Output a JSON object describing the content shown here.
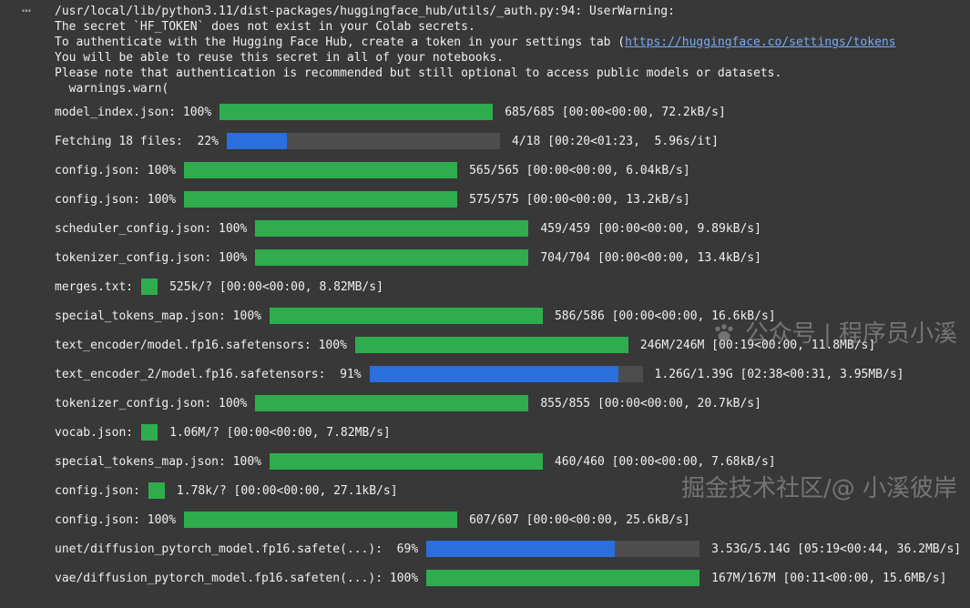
{
  "colors": {
    "background": "#383838",
    "text": "#efefef",
    "green": "#2fad4e",
    "blue": "#2a6fdb",
    "track": "#4d4d4d",
    "link": "#77a9f7",
    "watermark": "rgba(175,175,175,0.5)"
  },
  "icons": {
    "output_menu": "ellipsis-icon",
    "watermark_logo": "paw-icon"
  },
  "output_menu": {
    "label": "⋯"
  },
  "warning": {
    "line1": "/usr/local/lib/python3.11/dist-packages/huggingface_hub/utils/_auth.py:94: UserWarning:",
    "line2": "The secret `HF_TOKEN` does not exist in your Colab secrets.",
    "line3_prefix": "To authenticate with the Hugging Face Hub, create a token in your settings tab (",
    "line3_link": "https://huggingface.co/settings/tokens",
    "line4": "You will be able to reuse this secret in all of your notebooks.",
    "line5": "Please note that authentication is recommended but still optional to access public models or datasets.",
    "line6": "  warnings.warn("
  },
  "progress": {
    "rows": [
      {
        "label": "model_index.json: 100%",
        "bar": {
          "style": "bar",
          "percent": 100,
          "color": "green"
        },
        "stats": "685/685 [00:00<00:00, 72.2kB/s]"
      },
      {
        "label": "Fetching 18 files:  22%",
        "bar": {
          "style": "bar",
          "percent": 22,
          "color": "blue"
        },
        "stats": "4/18 [00:20<01:23,  5.96s/it]"
      },
      {
        "label": "config.json: 100%",
        "bar": {
          "style": "bar",
          "percent": 100,
          "color": "green"
        },
        "stats": "565/565 [00:00<00:00, 6.04kB/s]"
      },
      {
        "label": "config.json: 100%",
        "bar": {
          "style": "bar",
          "percent": 100,
          "color": "green"
        },
        "stats": "575/575 [00:00<00:00, 13.2kB/s]"
      },
      {
        "label": "scheduler_config.json: 100%",
        "bar": {
          "style": "bar",
          "percent": 100,
          "color": "green"
        },
        "stats": "459/459 [00:00<00:00, 9.89kB/s]"
      },
      {
        "label": "tokenizer_config.json: 100%",
        "bar": {
          "style": "bar",
          "percent": 100,
          "color": "green"
        },
        "stats": "704/704 [00:00<00:00, 13.4kB/s]"
      },
      {
        "label": "merges.txt:",
        "bar": {
          "style": "indeterminate",
          "color": "green"
        },
        "stats": "525k/? [00:00<00:00, 8.82MB/s]"
      },
      {
        "label": "special_tokens_map.json: 100%",
        "bar": {
          "style": "bar",
          "percent": 100,
          "color": "green"
        },
        "stats": "586/586 [00:00<00:00, 16.6kB/s]"
      },
      {
        "label": "text_encoder/model.fp16.safetensors: 100%",
        "bar": {
          "style": "bar",
          "percent": 100,
          "color": "green"
        },
        "stats": "246M/246M [00:19<00:00, 11.8MB/s]"
      },
      {
        "label": "text_encoder_2/model.fp16.safetensors:  91%",
        "bar": {
          "style": "bar",
          "percent": 91,
          "color": "blue"
        },
        "stats": "1.26G/1.39G [02:38<00:31, 3.95MB/s]"
      },
      {
        "label": "tokenizer_config.json: 100%",
        "bar": {
          "style": "bar",
          "percent": 100,
          "color": "green"
        },
        "stats": "855/855 [00:00<00:00, 20.7kB/s]"
      },
      {
        "label": "vocab.json:",
        "bar": {
          "style": "indeterminate",
          "color": "green"
        },
        "stats": "1.06M/? [00:00<00:00, 7.82MB/s]"
      },
      {
        "label": "special_tokens_map.json: 100%",
        "bar": {
          "style": "bar",
          "percent": 100,
          "color": "green"
        },
        "stats": "460/460 [00:00<00:00, 7.68kB/s]"
      },
      {
        "label": "config.json:",
        "bar": {
          "style": "indeterminate",
          "color": "green"
        },
        "stats": "1.78k/? [00:00<00:00, 27.1kB/s]"
      },
      {
        "label": "config.json: 100%",
        "bar": {
          "style": "bar",
          "percent": 100,
          "color": "green"
        },
        "stats": "607/607 [00:00<00:00, 25.6kB/s]"
      },
      {
        "label": "unet/diffusion_pytorch_model.fp16.safete(...):  69%",
        "bar": {
          "style": "bar",
          "percent": 69,
          "color": "blue"
        },
        "stats": "3.53G/5.14G [05:19<00:44, 36.2MB/s]"
      },
      {
        "label": "vae/diffusion_pytorch_model.fp16.safeten(...): 100%",
        "bar": {
          "style": "bar",
          "percent": 100,
          "color": "green"
        },
        "stats": "167M/167M [00:11<00:00, 15.6MB/s]"
      }
    ]
  },
  "watermark": {
    "line1": "公众号 | 程序员小溪",
    "line2": "掘金技术社区/@ 小溪彼岸"
  }
}
